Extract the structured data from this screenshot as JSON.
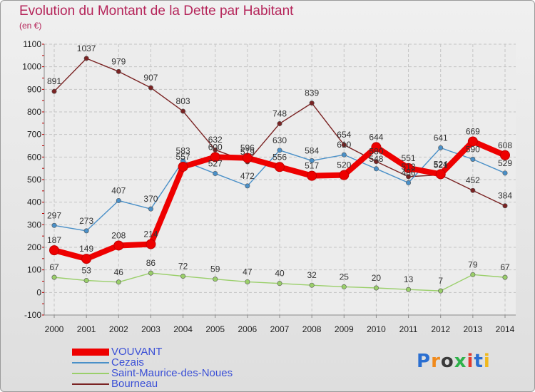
{
  "header": {
    "title": "Evolution du Montant de la Dette par Habitant",
    "subtitle": "(en €)"
  },
  "logo": {
    "text": "Proxiti",
    "colors": [
      "#2b6fd1",
      "#f08a1c",
      "#3a3a3a",
      "#2eb24a",
      "#e23b2e",
      "#2b6fd1",
      "#f0b81c"
    ]
  },
  "chart_data": {
    "type": "line",
    "title": "Evolution du Montant de la Dette par Habitant",
    "subtitle": "(en €)",
    "xlabel": "",
    "ylabel": "",
    "x": [
      "2000",
      "2001",
      "2002",
      "2003",
      "2004",
      "2005",
      "2006",
      "2007",
      "2008",
      "2009",
      "2010",
      "2011",
      "2012",
      "2013",
      "2014"
    ],
    "ylim": [
      -100,
      1100
    ],
    "yticks": [
      "-100",
      "0",
      "100",
      "200",
      "300",
      "400",
      "500",
      "600",
      "700",
      "800",
      "900",
      "1000",
      "1100"
    ],
    "grid": true,
    "legend_position": "bottom-left",
    "series": [
      {
        "name": "VOUVANT",
        "color": "#ee0000",
        "values": [
          187,
          149,
          208,
          214,
          557,
          600,
          596,
          556,
          517,
          520,
          644,
          551,
          524,
          669,
          608
        ],
        "labels": [
          "187",
          "149",
          "208",
          "214",
          "557",
          "600",
          "596",
          "556",
          "517",
          "520",
          "644",
          "551",
          "524",
          "669",
          "608"
        ]
      },
      {
        "name": "Cezais",
        "color": "#4a90c8",
        "values": [
          297,
          273,
          407,
          370,
          583,
          527,
          472,
          630,
          584,
          610,
          548,
          486,
          641,
          590,
          529
        ],
        "labels": [
          "297",
          "273",
          "407",
          "370",
          "583",
          "527",
          "472",
          "630",
          "584",
          "610",
          "548",
          "486",
          "641",
          "590",
          "529"
        ]
      },
      {
        "name": "Saint-Maurice-des-Noues",
        "color": "#9acf6a",
        "values": [
          67,
          53,
          46,
          86,
          72,
          59,
          47,
          40,
          32,
          25,
          20,
          13,
          7,
          79,
          67
        ],
        "labels": [
          "67",
          "53",
          "46",
          "86",
          "72",
          "59",
          "47",
          "40",
          "32",
          "25",
          "20",
          "13",
          "7",
          "79",
          "67"
        ]
      },
      {
        "name": "Bourneau",
        "color": "#7a2323",
        "values": [
          891,
          1037,
          979,
          907,
          803,
          632,
          579,
          748,
          839,
          654,
          580,
          513,
          521,
          452,
          384
        ],
        "labels": [
          "891",
          "1037",
          "979",
          "907",
          "803",
          "632",
          "579",
          "748",
          "839",
          "654",
          "580",
          "513",
          "521",
          "452",
          "384"
        ]
      }
    ]
  }
}
